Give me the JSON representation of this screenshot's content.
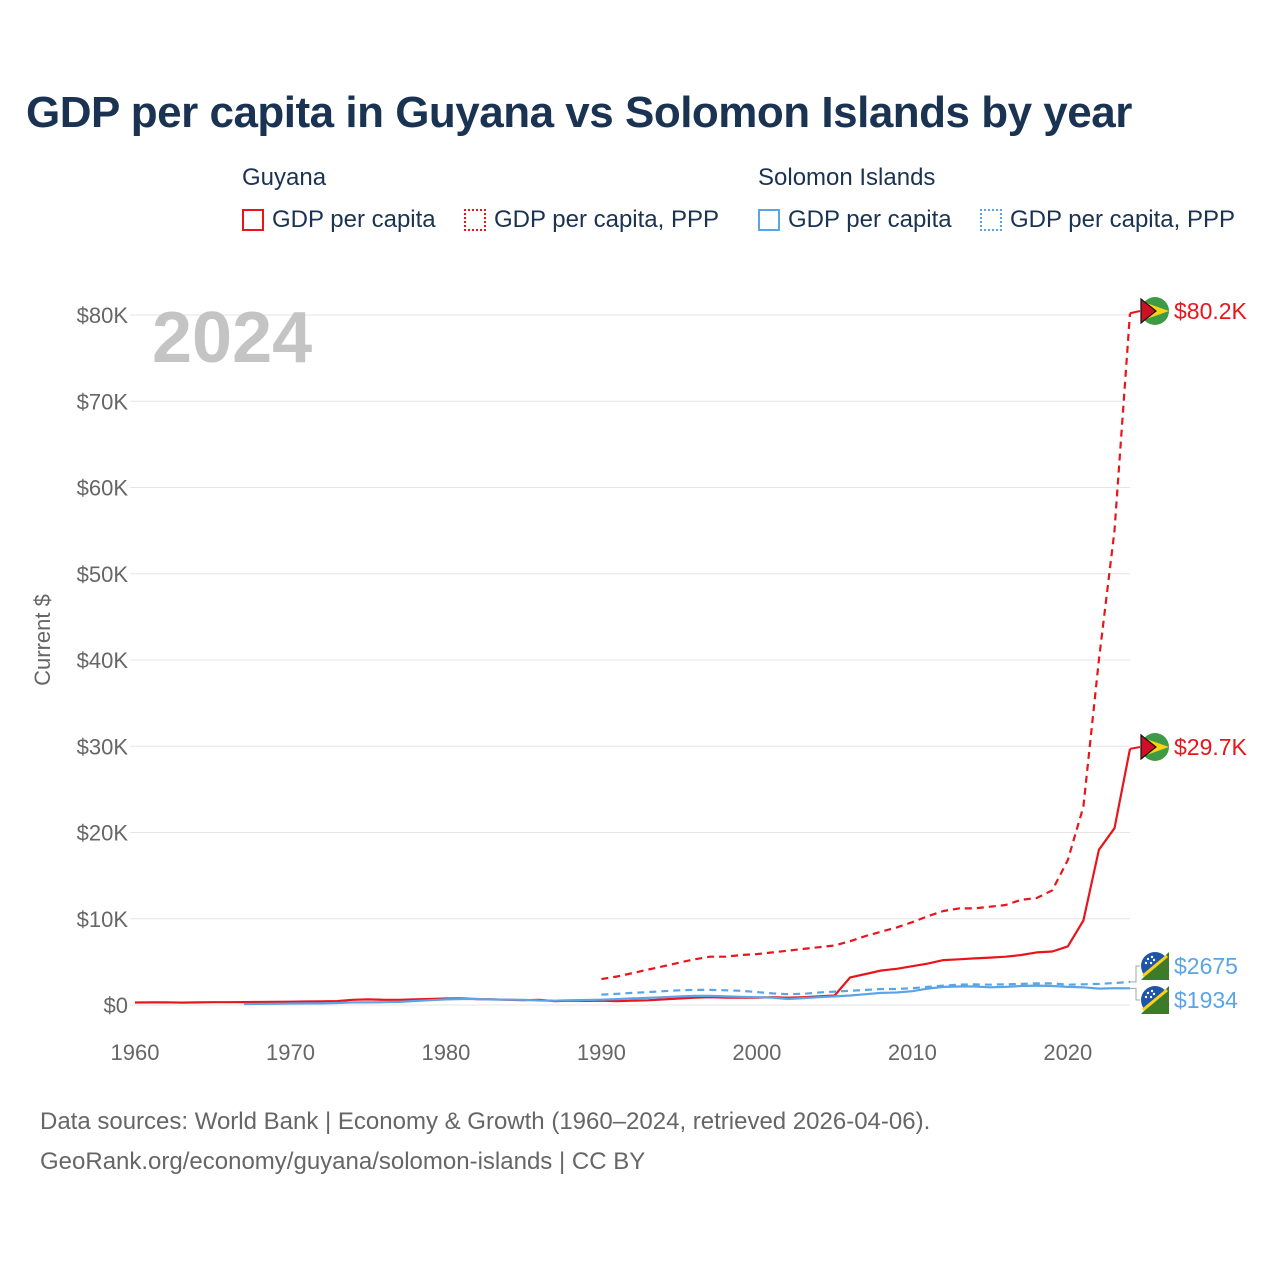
{
  "title": "GDP per capita in Guyana vs Solomon Islands by year",
  "legend": {
    "groups": [
      {
        "name": "Guyana",
        "color": "#e8151b",
        "items": [
          "GDP per capita",
          "GDP per capita, PPP"
        ]
      },
      {
        "name": "Solomon Islands",
        "color": "#5ba4e5",
        "items": [
          "GDP per capita",
          "GDP per capita, PPP"
        ]
      }
    ]
  },
  "year_watermark": "2024",
  "footer": {
    "line1": "Data sources: World Bank | Economy & Growth (1960–2024, retrieved 2026-04-06).",
    "line2": "GeoRank.org/economy/guyana/solomon-islands | CC BY"
  },
  "chart_data": {
    "type": "line",
    "title": "GDP per capita in Guyana vs Solomon Islands by year",
    "xlabel": "",
    "ylabel": "Current $",
    "xlim": [
      1960,
      2024
    ],
    "ylim": [
      0,
      80000
    ],
    "x_ticks": [
      "1960",
      "1970",
      "1980",
      "1990",
      "2000",
      "2010",
      "2020"
    ],
    "y_ticks": [
      "$0",
      "$10K",
      "$20K",
      "$30K",
      "$40K",
      "$50K",
      "$60K",
      "$70K",
      "$80K"
    ],
    "grid": true,
    "series": [
      {
        "name": "Guyana — GDP per capita",
        "color": "#e8151b",
        "dash": "solid",
        "x": [
          1960,
          1961,
          1962,
          1963,
          1964,
          1965,
          1966,
          1967,
          1968,
          1969,
          1970,
          1971,
          1972,
          1973,
          1974,
          1975,
          1976,
          1977,
          1978,
          1979,
          1980,
          1981,
          1982,
          1983,
          1984,
          1985,
          1986,
          1987,
          1988,
          1989,
          1990,
          1991,
          1992,
          1993,
          1994,
          1995,
          1996,
          1997,
          1998,
          1999,
          2000,
          2001,
          2002,
          2003,
          2004,
          2005,
          2006,
          2007,
          2008,
          2009,
          2010,
          2011,
          2012,
          2013,
          2014,
          2015,
          2016,
          2017,
          2018,
          2019,
          2020,
          2021,
          2022,
          2023,
          2024
        ],
        "values": [
          290,
          300,
          310,
          280,
          300,
          320,
          330,
          340,
          350,
          370,
          380,
          400,
          420,
          450,
          600,
          650,
          600,
          600,
          650,
          700,
          750,
          780,
          680,
          660,
          600,
          560,
          600,
          450,
          500,
          470,
          500,
          450,
          500,
          550,
          650,
          750,
          850,
          900,
          850,
          850,
          850,
          900,
          850,
          900,
          1000,
          1100,
          3200,
          3600,
          4000,
          4200,
          4500,
          4800,
          5200,
          5300,
          5400,
          5500,
          5600,
          5800,
          6100,
          6200,
          6800,
          9800,
          18000,
          20500,
          29700
        ],
        "end_label": "$29.7K"
      },
      {
        "name": "Guyana — GDP per capita, PPP",
        "color": "#e8151b",
        "dash": "dashed",
        "x": [
          1990,
          1991,
          1992,
          1993,
          1994,
          1995,
          1996,
          1997,
          1998,
          1999,
          2000,
          2001,
          2002,
          2003,
          2004,
          2005,
          2006,
          2007,
          2008,
          2009,
          2010,
          2011,
          2012,
          2013,
          2014,
          2015,
          2016,
          2017,
          2018,
          2019,
          2020,
          2021,
          2022,
          2023,
          2024
        ],
        "values": [
          3000,
          3300,
          3700,
          4100,
          4500,
          4900,
          5300,
          5600,
          5600,
          5800,
          5900,
          6100,
          6300,
          6500,
          6700,
          6900,
          7400,
          8000,
          8500,
          9000,
          9600,
          10300,
          10900,
          11200,
          11200,
          11400,
          11600,
          12200,
          12400,
          13300,
          16800,
          23000,
          40000,
          55000,
          80200
        ],
        "end_label": "$80.2K"
      },
      {
        "name": "Solomon Islands — GDP per capita",
        "color": "#5ba4e5",
        "dash": "solid",
        "x": [
          1967,
          1968,
          1969,
          1970,
          1971,
          1972,
          1973,
          1974,
          1975,
          1976,
          1977,
          1978,
          1979,
          1980,
          1981,
          1982,
          1983,
          1984,
          1985,
          1986,
          1987,
          1988,
          1989,
          1990,
          1991,
          1992,
          1993,
          1994,
          1995,
          1996,
          1997,
          1998,
          1999,
          2000,
          2001,
          2002,
          2003,
          2004,
          2005,
          2006,
          2007,
          2008,
          2009,
          2010,
          2011,
          2012,
          2013,
          2014,
          2015,
          2016,
          2017,
          2018,
          2019,
          2020,
          2021,
          2022,
          2023,
          2024
        ],
        "values": [
          120,
          130,
          140,
          170,
          180,
          190,
          230,
          300,
          300,
          320,
          360,
          460,
          560,
          650,
          700,
          700,
          640,
          620,
          600,
          520,
          500,
          560,
          580,
          620,
          680,
          760,
          820,
          900,
          980,
          1050,
          1050,
          1000,
          950,
          900,
          850,
          700,
          800,
          900,
          1000,
          1100,
          1250,
          1400,
          1450,
          1600,
          1900,
          2100,
          2150,
          2150,
          2050,
          2100,
          2200,
          2250,
          2200,
          2100,
          2050,
          1900,
          1950,
          1934
        ],
        "end_label": "$1934"
      },
      {
        "name": "Solomon Islands — GDP per capita, PPP",
        "color": "#5ba4e5",
        "dash": "dashed",
        "x": [
          1990,
          1991,
          1992,
          1993,
          1994,
          1995,
          1996,
          1997,
          1998,
          1999,
          2000,
          2001,
          2002,
          2003,
          2004,
          2005,
          2006,
          2007,
          2008,
          2009,
          2010,
          2011,
          2012,
          2013,
          2014,
          2015,
          2016,
          2017,
          2018,
          2019,
          2020,
          2021,
          2022,
          2023,
          2024
        ],
        "values": [
          1200,
          1300,
          1400,
          1500,
          1600,
          1700,
          1750,
          1750,
          1700,
          1650,
          1500,
          1350,
          1250,
          1300,
          1450,
          1550,
          1650,
          1750,
          1850,
          1850,
          1950,
          2100,
          2250,
          2350,
          2400,
          2350,
          2400,
          2450,
          2500,
          2500,
          2350,
          2400,
          2450,
          2550,
          2675
        ],
        "end_label": "$2675"
      }
    ]
  }
}
